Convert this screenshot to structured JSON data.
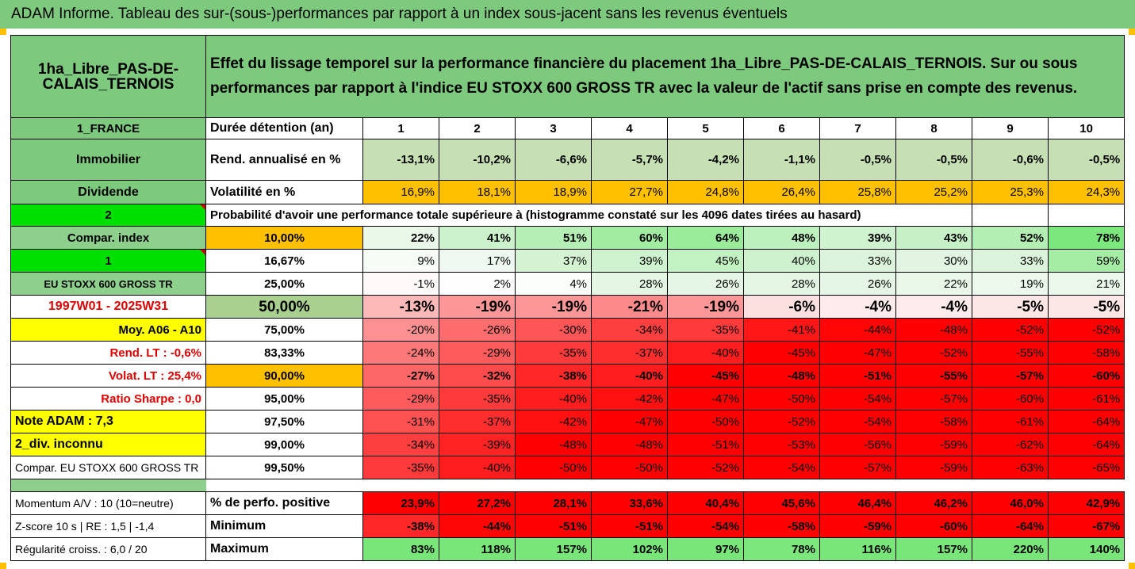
{
  "title": "ADAM Informe. Tableau des sur-(sous-)performances par rapport à un index sous-jacent sans les revenus éventuels",
  "header": {
    "asset": "1ha_Libre_PAS-DE-CALAIS_TERNOIS",
    "description": "Effet du lissage temporel sur la performance financière du placement 1ha_Libre_PAS-DE-CALAIS_TERNOIS. Sur ou sous performances par rapport à l'indice EU STOXX 600 GROSS TR avec la valeur de l'actif sans prise en compte des revenus."
  },
  "left": {
    "country": "1_FRANCE",
    "category": "Immobilier",
    "dividende": "Dividende",
    "num2": "2",
    "compar_index": "Compar. index",
    "num1": "1",
    "index_name": "EU STOXX 600 GROSS TR",
    "period": "1997W01 - 2025W31",
    "moy": "Moy. A06 - A10",
    "rend_lt": "Rend. LT :   -0,6%",
    "volat_lt": "Volat. LT :   25,4%",
    "sharpe": "Ratio Sharpe :    0,0",
    "note": "Note ADAM : 7,3",
    "div": "2_div. inconnu",
    "compar_full": "Compar. EU STOXX 600 GROSS TR",
    "momentum": "Momentum A/V : 10 (10=neutre)",
    "zscore": "Z-score 10 s  |  RE : 1,5  |  -1,4",
    "regularite": "Régularité croiss. : 6,0 / 20"
  },
  "labels": {
    "duree": "Durée détention (an)",
    "rend": "Rend. annualisé en %",
    "vol": "Volatilité en %",
    "proba": "Probabilité d'avoir une performance totale supérieure à (histogramme constaté sur les 4096 dates tirées au hasard)",
    "perf_pos": "% de perfo. positive",
    "minimum": "Minimum",
    "maximum": "Maximum"
  },
  "years": [
    "1",
    "2",
    "3",
    "4",
    "5",
    "6",
    "7",
    "8",
    "9",
    "10"
  ],
  "rend": [
    "-13,1%",
    "-10,2%",
    "-6,6%",
    "-5,7%",
    "-4,2%",
    "-1,1%",
    "-0,5%",
    "-0,5%",
    "-0,6%",
    "-0,5%"
  ],
  "vol": [
    "16,9%",
    "18,1%",
    "18,9%",
    "27,7%",
    "24,8%",
    "26,4%",
    "25,8%",
    "25,2%",
    "25,3%",
    "24,3%"
  ],
  "prob_rows": [
    {
      "level": "10,00%",
      "values": [
        "22%",
        "41%",
        "51%",
        "60%",
        "64%",
        "48%",
        "39%",
        "43%",
        "52%",
        "78%"
      ]
    },
    {
      "level": "16,67%",
      "values": [
        "9%",
        "17%",
        "37%",
        "39%",
        "45%",
        "40%",
        "33%",
        "30%",
        "33%",
        "59%"
      ]
    },
    {
      "level": "25,00%",
      "values": [
        "-1%",
        "2%",
        "4%",
        "28%",
        "26%",
        "28%",
        "26%",
        "22%",
        "19%",
        "21%"
      ]
    },
    {
      "level": "50,00%",
      "values": [
        "-13%",
        "-19%",
        "-19%",
        "-21%",
        "-19%",
        "-6%",
        "-4%",
        "-4%",
        "-5%",
        "-5%"
      ]
    },
    {
      "level": "75,00%",
      "values": [
        "-20%",
        "-26%",
        "-30%",
        "-34%",
        "-35%",
        "-41%",
        "-44%",
        "-48%",
        "-52%",
        "-52%"
      ]
    },
    {
      "level": "83,33%",
      "values": [
        "-24%",
        "-29%",
        "-35%",
        "-37%",
        "-40%",
        "-45%",
        "-47%",
        "-52%",
        "-55%",
        "-58%"
      ]
    },
    {
      "level": "90,00%",
      "values": [
        "-27%",
        "-32%",
        "-38%",
        "-40%",
        "-45%",
        "-48%",
        "-51%",
        "-55%",
        "-57%",
        "-60%"
      ]
    },
    {
      "level": "95,00%",
      "values": [
        "-29%",
        "-35%",
        "-40%",
        "-42%",
        "-47%",
        "-50%",
        "-54%",
        "-57%",
        "-60%",
        "-61%"
      ]
    },
    {
      "level": "97,50%",
      "values": [
        "-31%",
        "-37%",
        "-42%",
        "-47%",
        "-50%",
        "-52%",
        "-54%",
        "-58%",
        "-61%",
        "-64%"
      ]
    },
    {
      "level": "99,00%",
      "values": [
        "-34%",
        "-39%",
        "-48%",
        "-48%",
        "-51%",
        "-53%",
        "-56%",
        "-59%",
        "-62%",
        "-64%"
      ]
    },
    {
      "level": "99,50%",
      "values": [
        "-35%",
        "-40%",
        "-50%",
        "-50%",
        "-52%",
        "-54%",
        "-57%",
        "-59%",
        "-63%",
        "-65%"
      ]
    }
  ],
  "perf_pos": [
    "23,9%",
    "27,2%",
    "28,1%",
    "33,6%",
    "40,4%",
    "45,6%",
    "46,4%",
    "46,2%",
    "46,0%",
    "42,9%"
  ],
  "minimum": [
    "-38%",
    "-44%",
    "-51%",
    "-51%",
    "-54%",
    "-58%",
    "-59%",
    "-60%",
    "-64%",
    "-67%"
  ],
  "maximum": [
    "83%",
    "118%",
    "157%",
    "102%",
    "97%",
    "78%",
    "116%",
    "157%",
    "220%",
    "140%"
  ],
  "colors": {
    "green_header": "#7dc97d",
    "orange": "#ffc000",
    "lime": "#00e000",
    "yellow": "#ffff00",
    "red": "#ff0000"
  }
}
